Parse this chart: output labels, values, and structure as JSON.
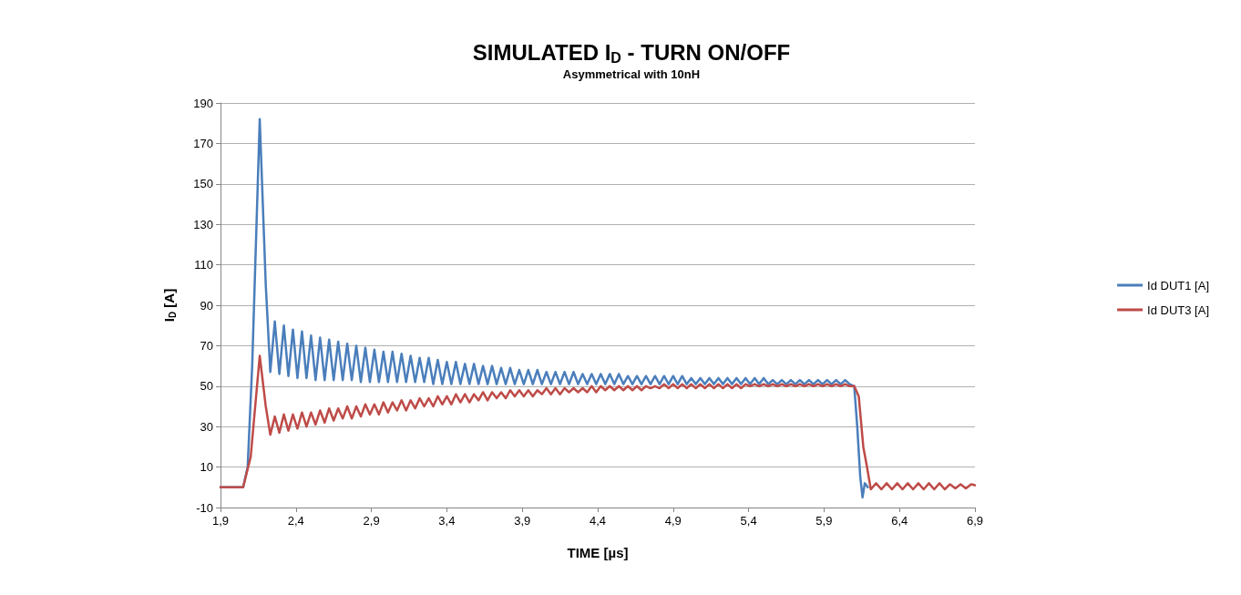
{
  "chart_data": {
    "type": "line",
    "title": "SIMULATED I$_{D}$ - TURN ON/OFF",
    "subtitle": "Asymmetrical with 10nH",
    "xlabel": "TIME [µs]",
    "ylabel": "I$_{D}$ [A]",
    "xlim": [
      1.9,
      6.9
    ],
    "xticks": [
      {
        "value": 1.9,
        "label": "1,9"
      },
      {
        "value": 2.4,
        "label": "2,4"
      },
      {
        "value": 2.9,
        "label": "2,9"
      },
      {
        "value": 3.4,
        "label": "3,4"
      },
      {
        "value": 3.9,
        "label": "3,9"
      },
      {
        "value": 4.4,
        "label": "4,4"
      },
      {
        "value": 4.9,
        "label": "4,9"
      },
      {
        "value": 5.4,
        "label": "5,4"
      },
      {
        "value": 5.9,
        "label": "5,9"
      },
      {
        "value": 6.4,
        "label": "6,4"
      },
      {
        "value": 6.9,
        "label": "6,9"
      }
    ],
    "ylim": [
      -10,
      190
    ],
    "yticks": [
      -10,
      10,
      30,
      50,
      70,
      90,
      110,
      130,
      150,
      170,
      190
    ],
    "grid": "y",
    "legend": "right",
    "marker": "none",
    "line_style": "solid",
    "series": [
      {
        "name": "Id DUT1 [A]",
        "color": "#4a7ebb",
        "x": [
          1.9,
          2.05,
          2.08,
          2.11,
          2.16,
          2.2,
          2.23,
          2.26,
          2.29,
          2.32,
          2.35,
          2.38,
          2.41,
          2.44,
          2.47,
          2.5,
          2.53,
          2.56,
          2.59,
          2.62,
          2.65,
          2.68,
          2.71,
          2.74,
          2.77,
          2.8,
          2.83,
          2.86,
          2.89,
          2.92,
          2.95,
          2.98,
          3.01,
          3.04,
          3.07,
          3.1,
          3.13,
          3.16,
          3.19,
          3.22,
          3.25,
          3.28,
          3.31,
          3.34,
          3.37,
          3.4,
          3.43,
          3.46,
          3.49,
          3.52,
          3.55,
          3.58,
          3.61,
          3.64,
          3.67,
          3.7,
          3.73,
          3.76,
          3.79,
          3.82,
          3.85,
          3.88,
          3.91,
          3.94,
          3.97,
          4.0,
          4.03,
          4.06,
          4.09,
          4.12,
          4.15,
          4.18,
          4.21,
          4.24,
          4.27,
          4.3,
          4.33,
          4.36,
          4.39,
          4.42,
          4.45,
          4.48,
          4.51,
          4.54,
          4.57,
          4.6,
          4.63,
          4.66,
          4.69,
          4.72,
          4.75,
          4.78,
          4.81,
          4.84,
          4.87,
          4.9,
          4.93,
          4.96,
          4.99,
          5.02,
          5.05,
          5.08,
          5.11,
          5.14,
          5.17,
          5.2,
          5.23,
          5.26,
          5.29,
          5.32,
          5.35,
          5.38,
          5.41,
          5.44,
          5.47,
          5.5,
          5.53,
          5.56,
          5.59,
          5.62,
          5.65,
          5.68,
          5.71,
          5.74,
          5.77,
          5.8,
          5.83,
          5.86,
          5.89,
          5.92,
          5.95,
          5.98,
          6.01,
          6.04,
          6.07,
          6.1,
          6.12,
          6.14,
          6.155,
          6.17,
          6.19
        ],
        "values": [
          0,
          0,
          10,
          60,
          182,
          100,
          57,
          82,
          56,
          80,
          55,
          78,
          54,
          77,
          54,
          75,
          53,
          74,
          53,
          73,
          53,
          72,
          53,
          71,
          53,
          70,
          52,
          69,
          52,
          68,
          52,
          67,
          52,
          67,
          52,
          66,
          52,
          65,
          52,
          64,
          52,
          64,
          51,
          63,
          51,
          62,
          51,
          62,
          51,
          61,
          51,
          61,
          51,
          60,
          51,
          60,
          51,
          59,
          51,
          59,
          51,
          58,
          51,
          58,
          51,
          58,
          51,
          57,
          51,
          57,
          51,
          57,
          51,
          57,
          51,
          56,
          51,
          56,
          51,
          56,
          51,
          56,
          51,
          56,
          51,
          55,
          51,
          55,
          51,
          55,
          51,
          55,
          51,
          55,
          51,
          55,
          51,
          55,
          51,
          54,
          51,
          54,
          51,
          54,
          51,
          54,
          51,
          54,
          51,
          54,
          51,
          54,
          51,
          54,
          51,
          54,
          51,
          53,
          51,
          53,
          51,
          53,
          51,
          53,
          51,
          53,
          51,
          53,
          51,
          53,
          51,
          53,
          51,
          53,
          51,
          50,
          30,
          5,
          -5,
          2,
          0
        ]
      },
      {
        "name": "Id DUT3 [A]",
        "color": "#be4b48",
        "x": [
          1.9,
          2.05,
          2.1,
          2.16,
          2.2,
          2.23,
          2.26,
          2.29,
          2.32,
          2.35,
          2.38,
          2.41,
          2.44,
          2.47,
          2.5,
          2.53,
          2.56,
          2.59,
          2.62,
          2.65,
          2.68,
          2.71,
          2.74,
          2.77,
          2.8,
          2.83,
          2.86,
          2.89,
          2.92,
          2.95,
          2.98,
          3.01,
          3.04,
          3.07,
          3.1,
          3.13,
          3.16,
          3.19,
          3.22,
          3.25,
          3.28,
          3.31,
          3.34,
          3.37,
          3.4,
          3.43,
          3.46,
          3.49,
          3.52,
          3.55,
          3.58,
          3.61,
          3.64,
          3.67,
          3.7,
          3.73,
          3.76,
          3.79,
          3.82,
          3.85,
          3.88,
          3.91,
          3.94,
          3.97,
          4.0,
          4.03,
          4.06,
          4.09,
          4.12,
          4.15,
          4.18,
          4.21,
          4.24,
          4.27,
          4.3,
          4.33,
          4.36,
          4.39,
          4.42,
          4.45,
          4.48,
          4.51,
          4.54,
          4.57,
          4.6,
          4.63,
          4.66,
          4.69,
          4.72,
          4.75,
          4.78,
          4.81,
          4.84,
          4.87,
          4.9,
          4.93,
          4.96,
          4.99,
          5.02,
          5.05,
          5.08,
          5.11,
          5.14,
          5.17,
          5.2,
          5.23,
          5.26,
          5.29,
          5.32,
          5.35,
          5.38,
          5.41,
          5.44,
          5.47,
          5.5,
          5.53,
          5.56,
          5.59,
          5.62,
          5.65,
          5.68,
          5.71,
          5.74,
          5.77,
          5.8,
          5.83,
          5.86,
          5.89,
          5.92,
          5.95,
          5.98,
          6.01,
          6.04,
          6.07,
          6.1,
          6.13,
          6.16,
          6.18,
          6.21,
          6.245,
          6.28,
          6.315,
          6.35,
          6.385,
          6.42,
          6.455,
          6.49,
          6.525,
          6.56,
          6.595,
          6.63,
          6.665,
          6.7,
          6.735,
          6.77,
          6.805,
          6.84,
          6.875,
          6.9
        ],
        "values": [
          0,
          0,
          15,
          65,
          40,
          26,
          35,
          27,
          36,
          28,
          36,
          29,
          37,
          30,
          37,
          31,
          38,
          32,
          39,
          33,
          39,
          34,
          40,
          34,
          40,
          35,
          41,
          36,
          41,
          36,
          42,
          37,
          42,
          38,
          43,
          38,
          43,
          39,
          44,
          40,
          44,
          40,
          45,
          41,
          45,
          41,
          46,
          42,
          46,
          42,
          46,
          43,
          47,
          43,
          47,
          44,
          47,
          44,
          48,
          45,
          48,
          45,
          48,
          45,
          48,
          46,
          49,
          46,
          49,
          46,
          49,
          47,
          49,
          47,
          49,
          47,
          50,
          47,
          50,
          48,
          50,
          48,
          50,
          48,
          50,
          48,
          50,
          48,
          50,
          49,
          50,
          49,
          51,
          49,
          51,
          49,
          51,
          49,
          51,
          49,
          51,
          49,
          51,
          49,
          51,
          49,
          51,
          49,
          51,
          49,
          51,
          50,
          51,
          50,
          51,
          50,
          51,
          50,
          51,
          50,
          51,
          50,
          51,
          50,
          51,
          50,
          51,
          50,
          51,
          50,
          51,
          50,
          51,
          50,
          50,
          45,
          20,
          12,
          -1,
          2,
          -1,
          2,
          -1,
          2,
          -1,
          2,
          -1,
          2,
          -1,
          2,
          -1,
          2,
          -1,
          1.5,
          -0.5,
          1.5,
          -0.5,
          1.5,
          1
        ]
      }
    ]
  }
}
